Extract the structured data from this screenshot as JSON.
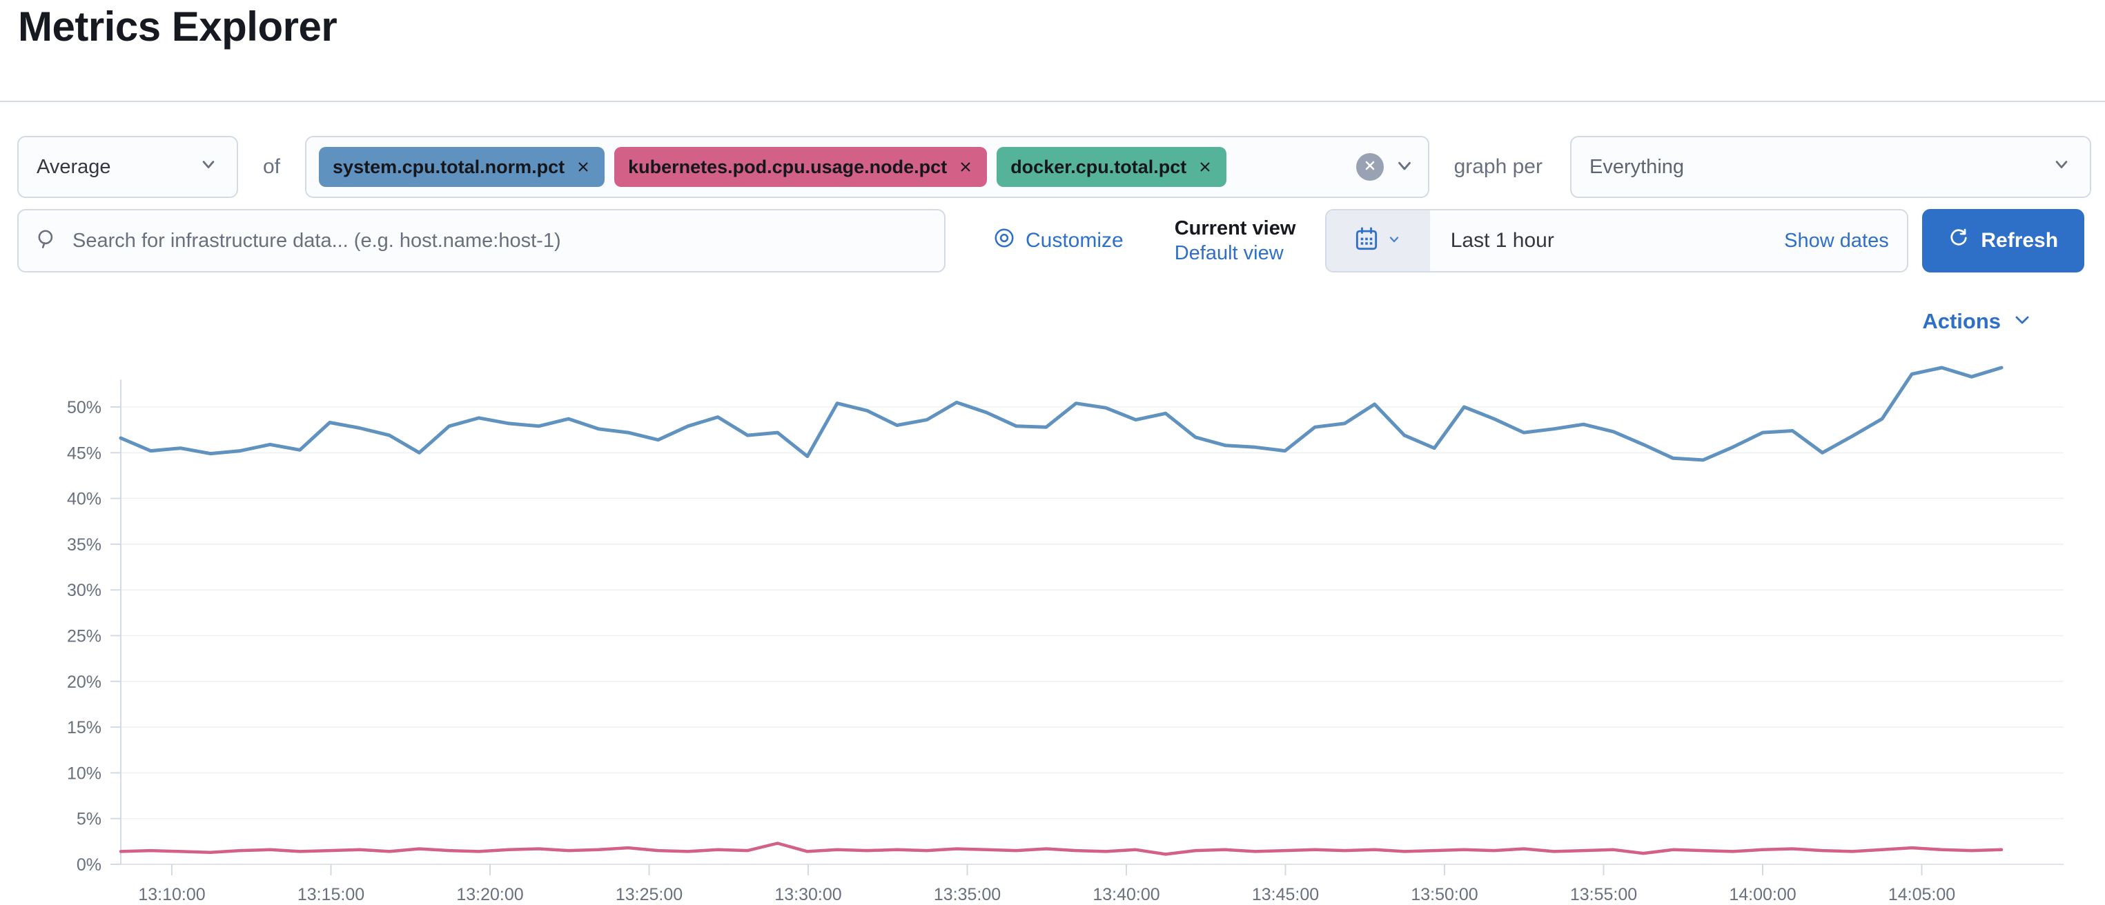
{
  "theme": {
    "accent": "#2E70C8",
    "text_primary": "#343741",
    "text_subdued": "#69707D",
    "border": "#D3DAE6",
    "grid": "#EEF0F4",
    "clear_button_bg": "#98A2B3"
  },
  "page": {
    "title": "Metrics Explorer"
  },
  "toolbar": {
    "aggregation": {
      "value": "Average"
    },
    "of_label": "of",
    "metrics": [
      {
        "label": "system.cpu.total.norm.pct",
        "color": "#6092C0"
      },
      {
        "label": "kubernetes.pod.cpu.usage.node.pct",
        "color": "#D36086"
      },
      {
        "label": "docker.cpu.total.pct",
        "color": "#54B399"
      }
    ],
    "graph_per_label": "graph per",
    "group_by": {
      "value": "Everything"
    }
  },
  "search": {
    "placeholder": "Search for infrastructure data... (e.g. host.name:host-1)"
  },
  "view_controls": {
    "customize_label": "Customize",
    "current_view_label": "Current view",
    "default_view_label": "Default view"
  },
  "time_picker": {
    "value": "Last 1 hour",
    "show_dates_label": "Show dates",
    "refresh_label": "Refresh"
  },
  "actions": {
    "label": "Actions"
  },
  "chart_data": {
    "type": "line",
    "title": "",
    "xlabel": "",
    "ylabel": "",
    "unit": "%",
    "ylim": [
      0,
      55
    ],
    "grid": "horizontal",
    "legend": "none",
    "y_tick_labels": [
      "0%",
      "5%",
      "10%",
      "15%",
      "20%",
      "25%",
      "30%",
      "35%",
      "40%",
      "45%",
      "50%"
    ],
    "x_tick_labels": [
      "13:10:00",
      "13:15:00",
      "13:20:00",
      "13:25:00",
      "13:30:00",
      "13:35:00",
      "13:40:00",
      "13:45:00",
      "13:50:00",
      "13:55:00",
      "14:00:00",
      "14:05:00"
    ],
    "x_tick_interval": "5m",
    "time_range_shown": "approx 13:08 - 14:08",
    "series": [
      {
        "name": "system.cpu.total.norm.pct",
        "color": "#6092C0",
        "values": [
          46.6,
          45.2,
          45.5,
          44.9,
          45.2,
          45.9,
          45.3,
          48.3,
          47.7,
          46.9,
          45.0,
          47.9,
          48.8,
          48.2,
          47.9,
          48.7,
          47.6,
          47.2,
          46.4,
          47.9,
          48.9,
          46.9,
          47.2,
          44.6,
          50.4,
          49.6,
          48.0,
          48.6,
          50.5,
          49.4,
          47.9,
          47.8,
          50.4,
          49.9,
          48.6,
          49.3,
          46.7,
          45.8,
          45.6,
          45.2,
          47.8,
          48.2,
          50.3,
          46.9,
          45.5,
          50.0,
          48.7,
          47.2,
          47.6,
          48.1,
          47.3,
          45.9,
          44.4,
          44.2,
          45.6,
          47.2,
          47.4,
          45.0,
          46.8,
          48.7,
          53.6,
          54.3,
          53.3,
          54.3
        ]
      },
      {
        "name": "kubernetes.pod.cpu.usage.node.pct",
        "color": "#D36086",
        "values": [
          1.4,
          1.5,
          1.4,
          1.3,
          1.5,
          1.6,
          1.4,
          1.5,
          1.6,
          1.4,
          1.7,
          1.5,
          1.4,
          1.6,
          1.7,
          1.5,
          1.6,
          1.8,
          1.5,
          1.4,
          1.6,
          1.5,
          2.3,
          1.4,
          1.6,
          1.5,
          1.6,
          1.5,
          1.7,
          1.6,
          1.5,
          1.7,
          1.5,
          1.4,
          1.6,
          1.1,
          1.5,
          1.6,
          1.4,
          1.5,
          1.6,
          1.5,
          1.6,
          1.4,
          1.5,
          1.6,
          1.5,
          1.7,
          1.4,
          1.5,
          1.6,
          1.2,
          1.6,
          1.5,
          1.4,
          1.6,
          1.7,
          1.5,
          1.4,
          1.6,
          1.8,
          1.6,
          1.5,
          1.6
        ]
      }
    ]
  }
}
